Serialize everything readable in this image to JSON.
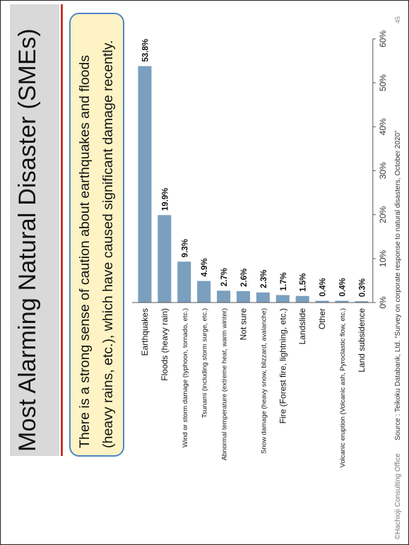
{
  "slide": {
    "title": "Most Alarming Natural Disaster (SMEs)",
    "callout": {
      "line1": "There is a strong sense of caution about earthquakes and floods",
      "line2": "(heavy rains, etc.), which have caused significant damage recently."
    },
    "copyright": "©Hachioji Consulting Office",
    "source": "Source : Teikoku Databank, Ltd. “Survey on corporate response to natural disasters, October 2020”",
    "page_number": "45"
  },
  "chart_data": {
    "type": "bar",
    "orientation": "horizontal",
    "categories": [
      "Earthquakes",
      "Floods (heavy rain)",
      "Wind or storm damage (typhoon, tornado, etc.)",
      "Tsunami (including storm surge, etc.)",
      "Abnormal temperature (extreme heat, warm winter)",
      "Not sure",
      "Snow damage (heavy snow, blizzard, avalanche)",
      "Fire (Forest fire, lightning, etc.)",
      "Landslide",
      "Other",
      "Volcanic eruption (Volcanic ash, Pyroclastic flow, etc.)",
      "Land subsidence"
    ],
    "values": [
      53.8,
      19.9,
      9.3,
      4.9,
      2.7,
      2.6,
      2.3,
      1.7,
      1.5,
      0.4,
      0.4,
      0.3
    ],
    "value_labels": [
      "53.8%",
      "19.9%",
      "9.3%",
      "4.9%",
      "2.7%",
      "2.6%",
      "2.3%",
      "1.7%",
      "1.5%",
      "0.4%",
      "0.4%",
      "0.3%"
    ],
    "xticks": [
      "0%",
      "10%",
      "20%",
      "30%",
      "40%",
      "50%",
      "60%"
    ],
    "xlim": [
      0,
      60
    ],
    "bar_color": "#7a9fbf",
    "grid": false
  }
}
